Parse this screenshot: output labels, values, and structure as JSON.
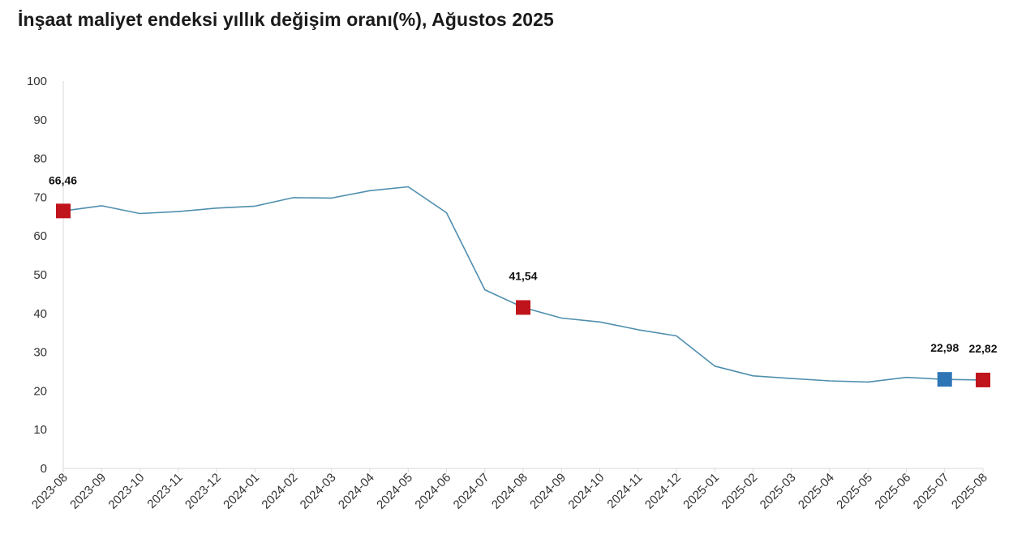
{
  "title": "İnşaat maliyet endeksi yıllık değişim oranı(%), Ağustos 2025",
  "chart_data": {
    "type": "line",
    "title": "İnşaat maliyet endeksi yıllık değişim oranı(%), Ağustos 2025",
    "xlabel": "",
    "ylabel": "",
    "ylim": [
      0,
      100
    ],
    "yticks": [
      "0",
      "10",
      "20",
      "30",
      "40",
      "50",
      "60",
      "70",
      "80",
      "90",
      "100"
    ],
    "grid": false,
    "legend": "none",
    "categories": [
      "2023-08",
      "2023-09",
      "2023-10",
      "2023-11",
      "2023-12",
      "2024-01",
      "2024-02",
      "2024-03",
      "2024-04",
      "2024-05",
      "2024-06",
      "2024-07",
      "2024-08",
      "2024-09",
      "2024-10",
      "2024-11",
      "2024-12",
      "2025-01",
      "2025-02",
      "2025-03",
      "2025-04",
      "2025-05",
      "2025-06",
      "2025-07",
      "2025-08"
    ],
    "series": [
      {
        "color": "#4f8fae",
        "values": [
          66.46,
          67.8,
          65.8,
          66.3,
          67.2,
          67.7,
          69.9,
          69.8,
          71.7,
          72.7,
          66.0,
          46.1,
          41.54,
          38.8,
          37.8,
          35.8,
          34.2,
          26.4,
          23.9,
          23.2,
          22.6,
          22.3,
          23.5,
          22.98,
          22.82
        ]
      }
    ],
    "highlights": [
      {
        "index": 0,
        "label": "66,46",
        "color": "#c0141c"
      },
      {
        "index": 12,
        "label": "41,54",
        "color": "#c0141c"
      },
      {
        "index": 23,
        "label": "22,98",
        "color": "#2e75b6"
      },
      {
        "index": 24,
        "label": "22,82",
        "color": "#c0141c"
      }
    ],
    "axis_color": "#d9d9d9"
  }
}
